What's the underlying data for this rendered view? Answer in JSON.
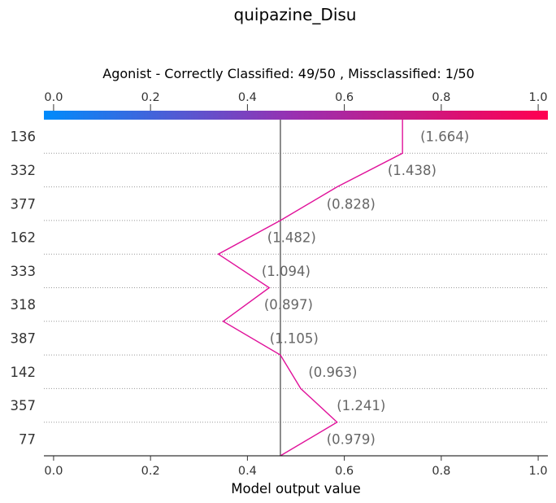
{
  "figure": {
    "title": "quipazine_Disu",
    "subtitle": "Agonist - Correctly Classified: 49/50 , Missclassified: 1/50"
  },
  "colors": {
    "colorbar_start": "#008bfb",
    "colorbar_mid": "#9a2fb0",
    "colorbar_end": "#ff0051",
    "path": "#e0119a",
    "base_line": "#808080",
    "separator": "#999999"
  },
  "chart_data": {
    "type": "line",
    "xlabel": "Model output value",
    "xlim": [
      -0.02,
      1.02
    ],
    "xticks": [
      0.0,
      0.2,
      0.4,
      0.6,
      0.8,
      1.0
    ],
    "xtick_labels": [
      "0.0",
      "0.2",
      "0.4",
      "0.6",
      "0.8",
      "1.0"
    ],
    "base_value": 0.468,
    "features": [
      "136",
      "332",
      "377",
      "162",
      "333",
      "318",
      "387",
      "142",
      "357",
      "77"
    ],
    "feature_values": [
      "(1.664)",
      "(1.438)",
      "(0.828)",
      "(1.482)",
      "(1.094)",
      "(0.897)",
      "(1.105)",
      "(0.963)",
      "(1.241)",
      "(0.979)"
    ],
    "path_x": [
      0.468,
      0.585,
      0.51,
      0.468,
      0.35,
      0.445,
      0.34,
      0.468,
      0.585,
      0.72
    ],
    "path_top_x": 0.72,
    "colorbar": true
  }
}
